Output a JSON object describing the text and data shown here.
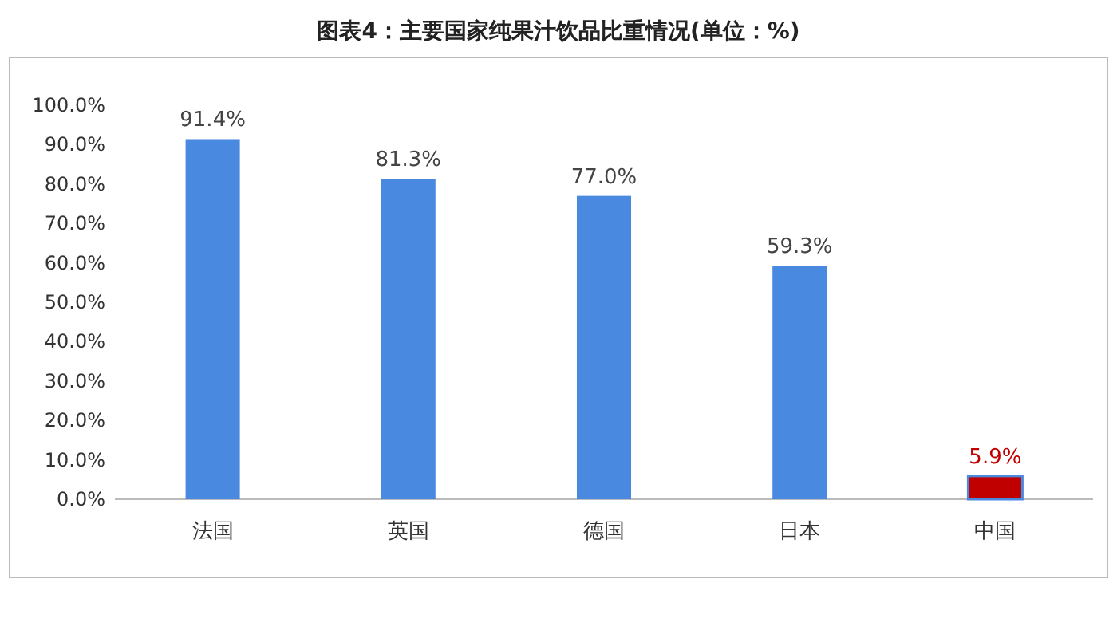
{
  "chart_data": {
    "type": "bar",
    "title": "图表4：主要国家纯果汁饮品比重情况(单位：%)",
    "categories": [
      "法国",
      "英国",
      "德国",
      "日本",
      "中国"
    ],
    "values": [
      91.4,
      81.3,
      77.0,
      59.3,
      5.9
    ],
    "value_labels": [
      "91.4%",
      "81.3%",
      "77.0%",
      "59.3%",
      "5.9%"
    ],
    "color": "#4a89e0",
    "colors": [
      "#4a89e0",
      "#4a89e0",
      "#4a89e0",
      "#4a89e0",
      "#c00000"
    ],
    "ylim": [
      0,
      100
    ],
    "yticks": [
      {
        "value": 0,
        "label": "0.0%"
      },
      {
        "value": 10,
        "label": "10.0%"
      },
      {
        "value": 20,
        "label": "20.0%"
      },
      {
        "value": 30,
        "label": "30.0%"
      },
      {
        "value": 40,
        "label": "40.0%"
      },
      {
        "value": 50,
        "label": "50.0%"
      },
      {
        "value": 60,
        "label": "60.0%"
      },
      {
        "value": 70,
        "label": "70.0%"
      },
      {
        "value": 80,
        "label": "80.0%"
      },
      {
        "value": 90,
        "label": "90.0%"
      },
      {
        "value": 100,
        "label": "100.0%"
      }
    ],
    "grid": false
  }
}
